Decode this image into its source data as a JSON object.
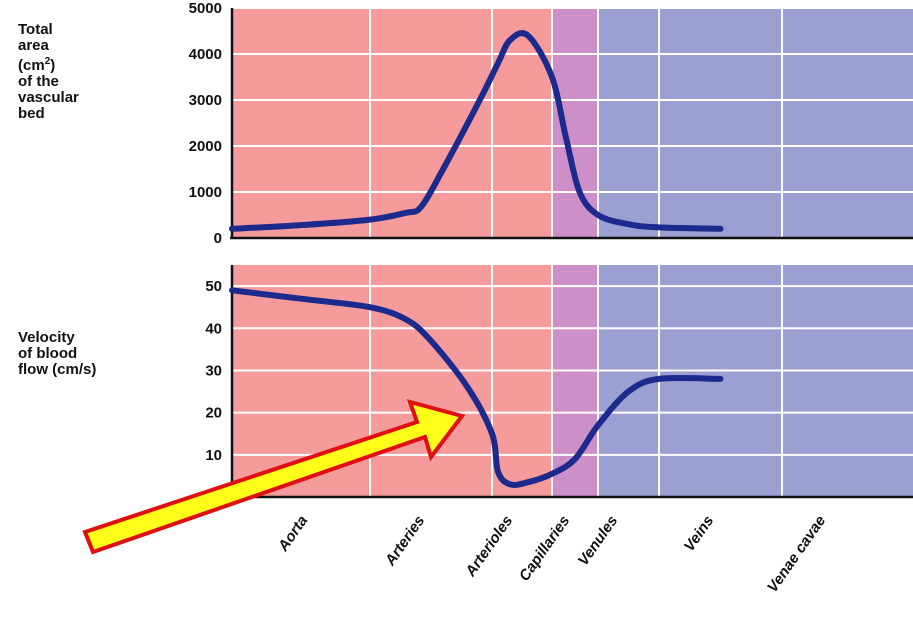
{
  "chart_data": [
    {
      "type": "line",
      "ylabel_lines": [
        "Total",
        "area",
        "(cm",
        "2",
        ")",
        "of the",
        "vascular",
        "bed"
      ],
      "categories": [
        "Aorta",
        "Arteries",
        "Arterioles",
        "Capillaries",
        "Venules",
        "Veins",
        "Venae cavae"
      ],
      "yticks": [
        0,
        1000,
        2000,
        3000,
        4000,
        5000
      ],
      "ylim": [
        0,
        5000
      ],
      "series": [
        {
          "x": [
            0,
            0.5,
            1.0,
            1.3,
            1.42,
            1.6,
            1.9,
            2.1,
            2.3,
            2.6,
            3.0,
            3.3,
            3.6,
            4.0,
            4.5,
            5.0,
            5.5
          ],
          "values": [
            200,
            280,
            400,
            550,
            680,
            1500,
            3000,
            3800,
            4300,
            4400,
            3500,
            2200,
            1000,
            500,
            300,
            230,
            200
          ]
        }
      ],
      "grid": true
    },
    {
      "type": "line",
      "ylabel_lines": [
        "Velocity",
        "of blood",
        "flow (cm/s)"
      ],
      "categories": [
        "Aorta",
        "Arteries",
        "Arterioles",
        "Capillaries",
        "Venules",
        "Veins",
        "Venae cavae"
      ],
      "yticks": [
        10,
        20,
        30,
        40,
        50
      ],
      "ylim": [
        0,
        55
      ],
      "series": [
        {
          "x": [
            0,
            0.5,
            1.0,
            1.3,
            1.5,
            1.8,
            2.0,
            2.1,
            2.3,
            2.6,
            3.0,
            3.5,
            4.0,
            4.5,
            5.0,
            5.5
          ],
          "values": [
            49,
            47,
            45,
            42,
            37,
            26,
            15,
            6,
            3,
            3.5,
            5.5,
            9,
            17,
            25,
            28,
            28
          ]
        }
      ],
      "grid": true
    }
  ],
  "region_colors": {
    "arterial": "#f59b9b",
    "capillary": "#cc8fc8",
    "venous": "#9b9fd2"
  },
  "line_color": "#1b2a8c",
  "arrow": {
    "fill": "#ffff1a",
    "stroke": "#e01010"
  }
}
